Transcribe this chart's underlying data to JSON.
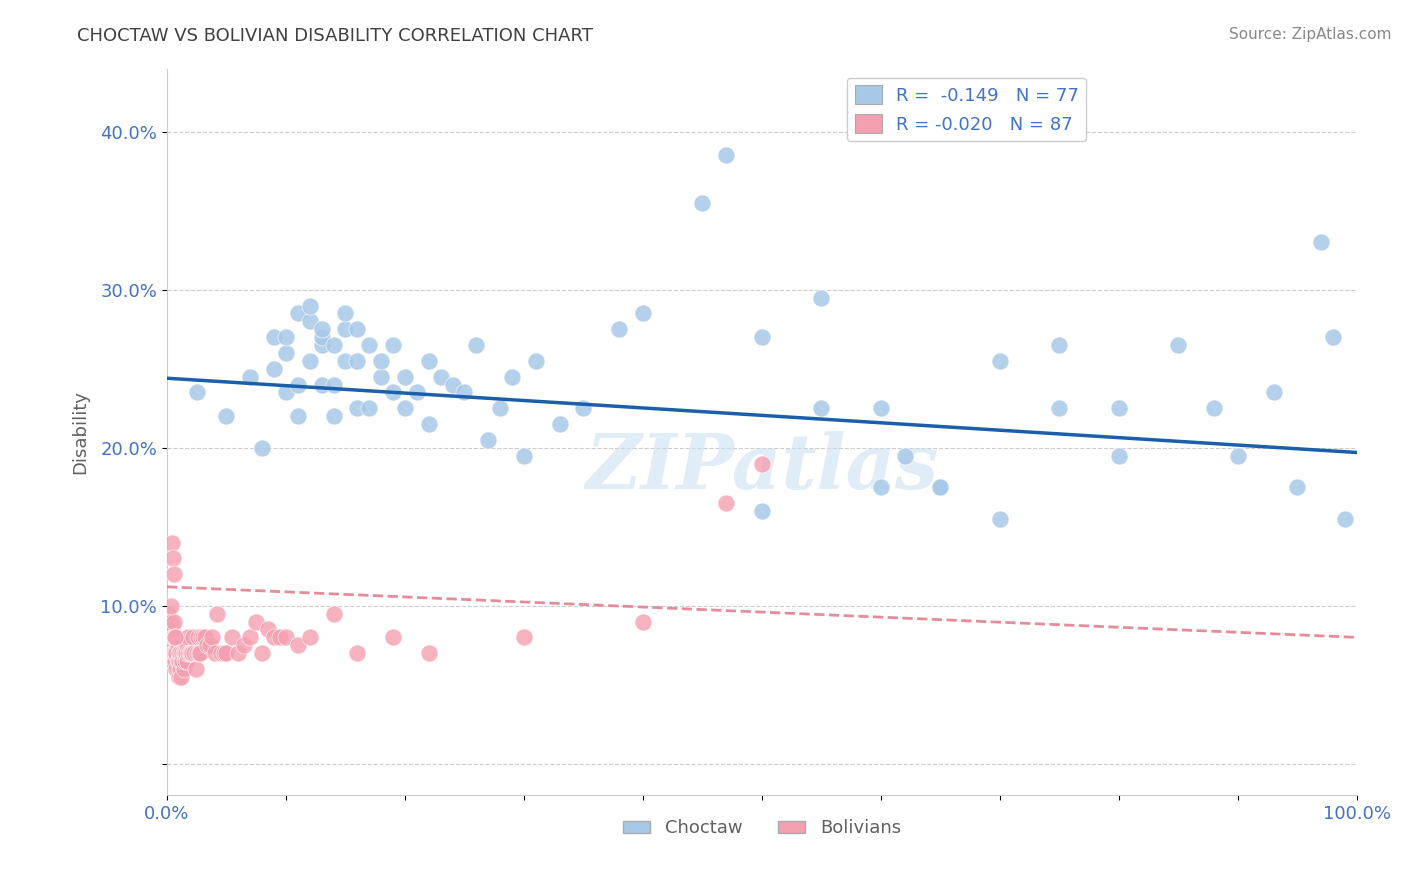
{
  "title": "CHOCTAW VS BOLIVIAN DISABILITY CORRELATION CHART",
  "source": "Source: ZipAtlas.com",
  "ylabel": "Disability",
  "xlim": [
    0,
    1.0
  ],
  "ylim": [
    -0.02,
    0.44
  ],
  "xticks": [
    0.0,
    0.1,
    0.2,
    0.3,
    0.4,
    0.5,
    0.6,
    0.7,
    0.8,
    0.9,
    1.0
  ],
  "xticklabels": [
    "0.0%",
    "",
    "",
    "",
    "",
    "",
    "",
    "",
    "",
    "",
    "100.0%"
  ],
  "yticks": [
    0.0,
    0.1,
    0.2,
    0.3,
    0.4
  ],
  "yticklabels": [
    "",
    "10.0%",
    "20.0%",
    "30.0%",
    "40.0%"
  ],
  "choctaw_color": "#a8c8e8",
  "bolivian_color": "#f4a0b0",
  "choctaw_line_color": "#1a5fa8",
  "bolivian_line_color": "#e07888",
  "grid_color": "#cccccc",
  "background_color": "#ffffff",
  "title_color": "#404040",
  "axis_color": "#4472c4",
  "R_choctaw": -0.149,
  "N_choctaw": 77,
  "R_bolivian": -0.02,
  "N_bolivian": 87,
  "choctaw_line": [
    0.0,
    0.244,
    1.0,
    0.197
  ],
  "bolivian_line": [
    0.0,
    0.112,
    1.0,
    0.08
  ],
  "choctaw_x": [
    0.025,
    0.05,
    0.07,
    0.08,
    0.09,
    0.09,
    0.1,
    0.1,
    0.1,
    0.11,
    0.11,
    0.11,
    0.12,
    0.12,
    0.12,
    0.13,
    0.13,
    0.13,
    0.13,
    0.14,
    0.14,
    0.14,
    0.15,
    0.15,
    0.15,
    0.16,
    0.16,
    0.16,
    0.17,
    0.17,
    0.18,
    0.18,
    0.19,
    0.19,
    0.2,
    0.2,
    0.21,
    0.22,
    0.22,
    0.23,
    0.24,
    0.25,
    0.26,
    0.27,
    0.28,
    0.29,
    0.3,
    0.31,
    0.33,
    0.35,
    0.38,
    0.4,
    0.45,
    0.47,
    0.5,
    0.55,
    0.6,
    0.62,
    0.65,
    0.7,
    0.75,
    0.8,
    0.85,
    0.88,
    0.9,
    0.93,
    0.95,
    0.97,
    0.98,
    0.99,
    0.75,
    0.8,
    0.65,
    0.7,
    0.6,
    0.55,
    0.5
  ],
  "choctaw_y": [
    0.235,
    0.22,
    0.245,
    0.2,
    0.25,
    0.27,
    0.235,
    0.26,
    0.27,
    0.22,
    0.24,
    0.285,
    0.255,
    0.28,
    0.29,
    0.24,
    0.265,
    0.27,
    0.275,
    0.22,
    0.24,
    0.265,
    0.255,
    0.275,
    0.285,
    0.225,
    0.255,
    0.275,
    0.225,
    0.265,
    0.245,
    0.255,
    0.265,
    0.235,
    0.245,
    0.225,
    0.235,
    0.215,
    0.255,
    0.245,
    0.24,
    0.235,
    0.265,
    0.205,
    0.225,
    0.245,
    0.195,
    0.255,
    0.215,
    0.225,
    0.275,
    0.285,
    0.355,
    0.385,
    0.27,
    0.295,
    0.225,
    0.195,
    0.175,
    0.255,
    0.225,
    0.195,
    0.265,
    0.225,
    0.195,
    0.235,
    0.175,
    0.33,
    0.27,
    0.155,
    0.265,
    0.225,
    0.175,
    0.155,
    0.175,
    0.225,
    0.16
  ],
  "bolivian_x": [
    0.001,
    0.002,
    0.002,
    0.003,
    0.003,
    0.003,
    0.004,
    0.004,
    0.004,
    0.005,
    0.005,
    0.005,
    0.006,
    0.006,
    0.006,
    0.007,
    0.007,
    0.007,
    0.008,
    0.008,
    0.008,
    0.009,
    0.009,
    0.01,
    0.01,
    0.01,
    0.011,
    0.011,
    0.012,
    0.012,
    0.013,
    0.013,
    0.014,
    0.014,
    0.015,
    0.015,
    0.016,
    0.017,
    0.017,
    0.018,
    0.018,
    0.019,
    0.02,
    0.021,
    0.022,
    0.023,
    0.024,
    0.025,
    0.026,
    0.027,
    0.028,
    0.029,
    0.03,
    0.032,
    0.034,
    0.036,
    0.038,
    0.04,
    0.042,
    0.045,
    0.048,
    0.05,
    0.055,
    0.06,
    0.065,
    0.07,
    0.075,
    0.08,
    0.085,
    0.09,
    0.095,
    0.1,
    0.11,
    0.12,
    0.14,
    0.16,
    0.19,
    0.22,
    0.3,
    0.4,
    0.47,
    0.5,
    0.003,
    0.004,
    0.005,
    0.006,
    0.007
  ],
  "bolivian_y": [
    0.095,
    0.085,
    0.09,
    0.075,
    0.08,
    0.09,
    0.065,
    0.075,
    0.085,
    0.065,
    0.07,
    0.08,
    0.07,
    0.08,
    0.09,
    0.065,
    0.07,
    0.08,
    0.07,
    0.08,
    0.06,
    0.065,
    0.075,
    0.055,
    0.065,
    0.07,
    0.06,
    0.07,
    0.055,
    0.065,
    0.065,
    0.07,
    0.06,
    0.07,
    0.065,
    0.07,
    0.07,
    0.065,
    0.075,
    0.07,
    0.08,
    0.07,
    0.07,
    0.07,
    0.08,
    0.07,
    0.06,
    0.07,
    0.08,
    0.07,
    0.07,
    0.08,
    0.08,
    0.08,
    0.075,
    0.075,
    0.08,
    0.07,
    0.095,
    0.07,
    0.07,
    0.07,
    0.08,
    0.07,
    0.075,
    0.08,
    0.09,
    0.07,
    0.085,
    0.08,
    0.08,
    0.08,
    0.075,
    0.08,
    0.095,
    0.07,
    0.08,
    0.07,
    0.08,
    0.09,
    0.165,
    0.19,
    0.1,
    0.14,
    0.13,
    0.12,
    0.08
  ],
  "watermark": "ZIPatlas"
}
